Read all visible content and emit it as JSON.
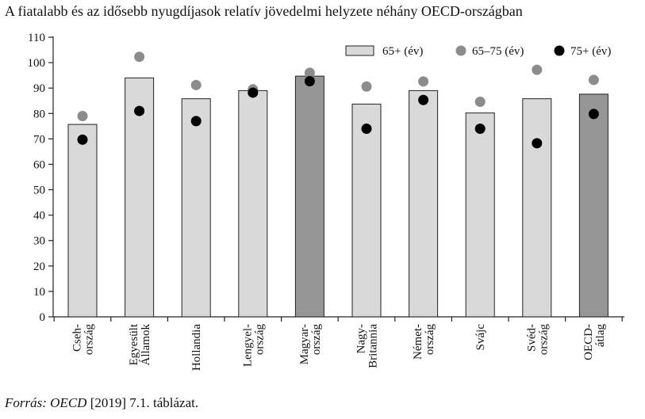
{
  "title": "A fiatalabb és az idősebb nyugdíjasok relatív jövedelmi helyzete néhány OECD-országban",
  "source": {
    "label": "Forrás:",
    "org": "OECD",
    "ref": "[2019] 7.1. táblázat."
  },
  "chart_data": {
    "type": "bar",
    "title": "A fiatalabb és az idősebb nyugdíjasok relatív jövedelmi helyzete néhány OECD-országban",
    "ylim": [
      0,
      110
    ],
    "yticks": [
      0,
      10,
      20,
      30,
      40,
      50,
      60,
      70,
      80,
      90,
      100,
      110
    ],
    "grid": false,
    "legend_position": "top-right",
    "categories": [
      [
        "Cseh-",
        "ország"
      ],
      [
        "Egyesült",
        "Államok"
      ],
      [
        "Hollandia"
      ],
      [
        "Lengyel-",
        "ország"
      ],
      [
        "Magyar-",
        "ország"
      ],
      [
        "Nagy-",
        "Britannia"
      ],
      [
        "Német-",
        "ország"
      ],
      [
        "Svájc"
      ],
      [
        "Svéd-",
        "ország"
      ],
      [
        "OECD-",
        "átlag"
      ]
    ],
    "highlight_indices": [
      4,
      9
    ],
    "series": [
      {
        "name": "65+ (év)",
        "kind": "bar",
        "color": "#d9d9d9",
        "highlight_color": "#969696",
        "values": [
          75.7,
          94,
          85.8,
          89,
          94.7,
          83.7,
          89,
          80.2,
          85.8,
          87.6
        ]
      },
      {
        "name": "65–75 (év)",
        "kind": "dot",
        "color": "#8c8c8c",
        "values": [
          79,
          102.3,
          91.2,
          89.5,
          96,
          90.6,
          92.6,
          84.6,
          97.2,
          93.2
        ]
      },
      {
        "name": "75+ (év)",
        "kind": "dot",
        "color": "#000000",
        "values": [
          69.7,
          81,
          77,
          88.2,
          92.7,
          74,
          85.3,
          74,
          68.3,
          79.8
        ]
      }
    ]
  }
}
